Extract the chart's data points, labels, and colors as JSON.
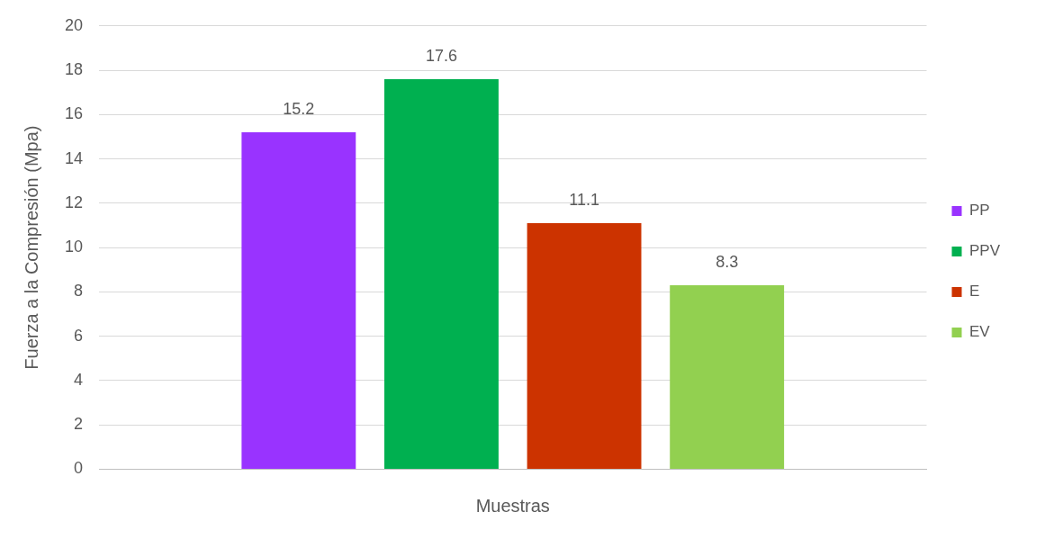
{
  "chart_data": {
    "type": "bar",
    "xlabel": "Muestras",
    "ylabel": "Fuerza a la Compresión (Mpa)",
    "categories": [
      null
    ],
    "series": [
      {
        "name": "PP",
        "color": "#9933ff",
        "values": [
          15.2
        ]
      },
      {
        "name": "PPV",
        "color": "#00b050",
        "values": [
          17.6
        ]
      },
      {
        "name": "E",
        "color": "#cc3300",
        "values": [
          11.1
        ]
      },
      {
        "name": "EV",
        "color": "#92d050",
        "values": [
          8.3
        ]
      }
    ],
    "ylim": [
      0,
      20
    ],
    "yticks": [
      0,
      2,
      4,
      6,
      8,
      10,
      12,
      14,
      16,
      18,
      20
    ],
    "grid": "y",
    "legend": "right",
    "data_labels": true
  }
}
